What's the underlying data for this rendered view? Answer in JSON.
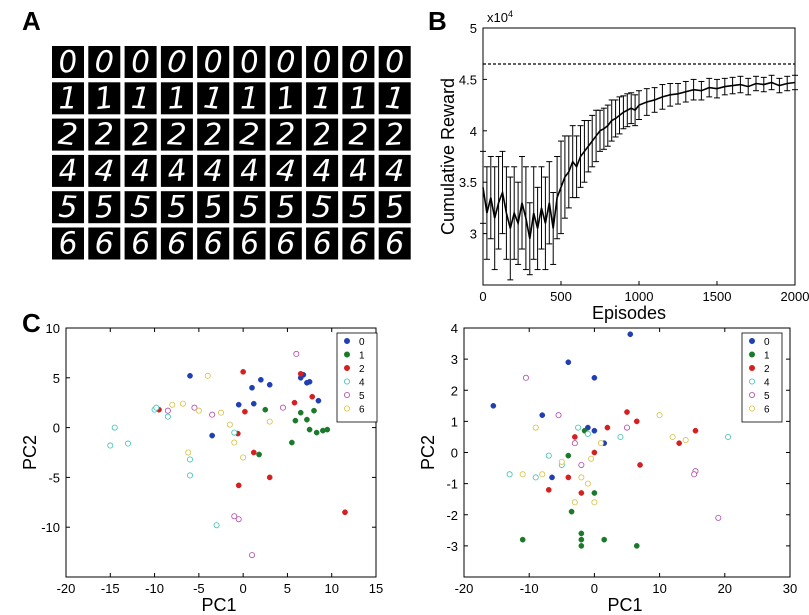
{
  "panels": {
    "a": "A",
    "b": "B",
    "c": "C"
  },
  "digits_grid": {
    "rows": [
      [
        "0",
        "0",
        "0",
        "0",
        "0",
        "0",
        "0",
        "0",
        "0",
        "0"
      ],
      [
        "1",
        "1",
        "1",
        "1",
        "1",
        "1",
        "1",
        "1",
        "1",
        "1"
      ],
      [
        "2",
        "2",
        "2",
        "2",
        "2",
        "2",
        "2",
        "2",
        "2",
        "2"
      ],
      [
        "4",
        "4",
        "4",
        "4",
        "4",
        "4",
        "4",
        "4",
        "4",
        "4"
      ],
      [
        "5",
        "5",
        "5",
        "5",
        "5",
        "5",
        "5",
        "5",
        "5",
        "5"
      ],
      [
        "6",
        "6",
        "6",
        "6",
        "6",
        "6",
        "6",
        "6",
        "6",
        "6"
      ]
    ]
  },
  "chart_data": [
    {
      "type": "line",
      "panel": "B",
      "xlabel": "Episodes",
      "ylabel": "Cumulative Reward",
      "y_exponent_label": "x10",
      "y_exponent_power": "4",
      "xlim": [
        0,
        2000
      ],
      "ylim": [
        2.5,
        5.0
      ],
      "xticks": [
        "0",
        "500",
        "1000",
        "1500",
        "2000"
      ],
      "yticks": [
        "3",
        "3.5",
        "4",
        "4.5",
        "5"
      ],
      "reference_line": {
        "y": 4.65,
        "style": "dashed"
      },
      "series": [
        {
          "x": [
            0,
            25,
            50,
            75,
            100,
            125,
            150,
            175,
            200,
            225,
            250,
            275,
            300,
            325,
            350,
            375,
            400,
            425,
            450,
            475,
            500,
            525,
            550,
            575,
            600,
            625,
            650,
            675,
            700,
            725,
            750,
            775,
            800,
            825,
            850,
            875,
            900,
            925,
            950,
            975,
            1000,
            1050,
            1100,
            1150,
            1200,
            1250,
            1300,
            1350,
            1400,
            1450,
            1500,
            1550,
            1600,
            1650,
            1700,
            1750,
            1800,
            1850,
            1900,
            1950,
            2000
          ],
          "y": [
            3.45,
            3.2,
            3.35,
            3.15,
            3.3,
            3.4,
            3.2,
            3.05,
            3.2,
            3.1,
            3.3,
            3.15,
            2.95,
            3.2,
            3.05,
            3.25,
            3.1,
            3.3,
            3.05,
            3.35,
            3.45,
            3.55,
            3.6,
            3.7,
            3.65,
            3.75,
            3.8,
            3.85,
            3.9,
            3.95,
            4.0,
            4.02,
            4.05,
            4.1,
            4.12,
            4.15,
            4.18,
            4.2,
            4.22,
            4.2,
            4.25,
            4.28,
            4.3,
            4.33,
            4.35,
            4.36,
            4.38,
            4.4,
            4.39,
            4.42,
            4.41,
            4.43,
            4.44,
            4.45,
            4.43,
            4.46,
            4.45,
            4.47,
            4.44,
            4.46,
            4.47
          ],
          "err": [
            0.35,
            0.45,
            0.4,
            0.5,
            0.45,
            0.4,
            0.45,
            0.5,
            0.45,
            0.4,
            0.45,
            0.5,
            0.35,
            0.45,
            0.4,
            0.4,
            0.45,
            0.4,
            0.35,
            0.4,
            0.45,
            0.4,
            0.35,
            0.35,
            0.3,
            0.3,
            0.3,
            0.25,
            0.25,
            0.25,
            0.2,
            0.2,
            0.2,
            0.2,
            0.18,
            0.18,
            0.16,
            0.16,
            0.15,
            0.15,
            0.14,
            0.13,
            0.12,
            0.12,
            0.11,
            0.1,
            0.1,
            0.1,
            0.09,
            0.09,
            0.09,
            0.08,
            0.08,
            0.08,
            0.08,
            0.07,
            0.07,
            0.07,
            0.07,
            0.07,
            0.07
          ]
        }
      ]
    },
    {
      "type": "scatter",
      "panel": "C-left",
      "xlabel": "PC1",
      "ylabel": "PC2",
      "xlim": [
        -20,
        15
      ],
      "ylim": [
        -15,
        10
      ],
      "xticks": [
        "-20",
        "-15",
        "-10",
        "-5",
        "0",
        "5",
        "10",
        "15"
      ],
      "yticks": [
        "-10",
        "-5",
        "0",
        "5",
        "10"
      ],
      "legend_position": "top-right",
      "series": [
        {
          "name": "0",
          "color": "#1f3fb3",
          "filled": true,
          "points": [
            [
              -6,
              5.2
            ],
            [
              1,
              4
            ],
            [
              2,
              4.8
            ],
            [
              3,
              4.3
            ],
            [
              6.5,
              5
            ],
            [
              7.5,
              4.6
            ],
            [
              8.5,
              2.7
            ],
            [
              -3.5,
              -0.8
            ],
            [
              -0.5,
              2.3
            ],
            [
              1.2,
              2.4
            ],
            [
              6.8,
              5.3
            ],
            [
              7.2,
              4.5
            ]
          ]
        },
        {
          "name": "1",
          "color": "#1a7a2a",
          "filled": true,
          "points": [
            [
              2.5,
              1.8
            ],
            [
              5.5,
              -1.5
            ],
            [
              6.5,
              1.5
            ],
            [
              7.5,
              -0.2
            ],
            [
              8,
              1.7
            ],
            [
              8.3,
              -0.5
            ],
            [
              9,
              -0.3
            ],
            [
              9.5,
              -0.2
            ],
            [
              5.9,
              0.7
            ],
            [
              1.8,
              -2.7
            ],
            [
              7.2,
              0.8
            ]
          ]
        },
        {
          "name": "2",
          "color": "#d42020",
          "filled": true,
          "points": [
            [
              -9.5,
              1.8
            ],
            [
              0,
              5.6
            ],
            [
              1.2,
              -2.5
            ],
            [
              3,
              -5
            ],
            [
              5.8,
              2.5
            ],
            [
              6.5,
              5.4
            ],
            [
              7.8,
              3.1
            ],
            [
              11.5,
              -8.5
            ],
            [
              -0.5,
              -5.8
            ],
            [
              -0.6,
              -0.6
            ],
            [
              0.2,
              1.6
            ]
          ]
        },
        {
          "name": "4",
          "color": "#40c0b0",
          "filled": false,
          "points": [
            [
              -15,
              -1.8
            ],
            [
              -14.5,
              0
            ],
            [
              -13,
              -1.6
            ],
            [
              -10,
              1.8
            ],
            [
              -9.8,
              2
            ],
            [
              -8.5,
              1.1
            ],
            [
              -6,
              -4.8
            ],
            [
              -3,
              -9.8
            ],
            [
              -6,
              -3.2
            ],
            [
              -1,
              -0.5
            ]
          ]
        },
        {
          "name": "5",
          "color": "#b04aa8",
          "filled": false,
          "points": [
            [
              -8.5,
              1.7
            ],
            [
              -5.5,
              2
            ],
            [
              -3.5,
              1.3
            ],
            [
              -1,
              -8.9
            ],
            [
              1,
              -12.8
            ],
            [
              6,
              7.4
            ],
            [
              -0.5,
              -9.2
            ],
            [
              4.5,
              2
            ]
          ]
        },
        {
          "name": "6",
          "color": "#d8c040",
          "filled": false,
          "points": [
            [
              -8,
              2.3
            ],
            [
              -6.8,
              2.4
            ],
            [
              -5,
              1.7
            ],
            [
              -4,
              5.2
            ],
            [
              -2.5,
              1.5
            ],
            [
              -1,
              -1.5
            ],
            [
              0,
              -3
            ],
            [
              -1.5,
              0.3
            ],
            [
              3,
              0.6
            ],
            [
              -6.2,
              -2.5
            ]
          ]
        }
      ]
    },
    {
      "type": "scatter",
      "panel": "C-right",
      "xlabel": "PC1",
      "ylabel": "PC2",
      "xlim": [
        -20,
        30
      ],
      "ylim": [
        -4,
        4
      ],
      "xticks": [
        "-20",
        "-10",
        "0",
        "10",
        "20",
        "30"
      ],
      "yticks": [
        "-3",
        "-2",
        "-1",
        "0",
        "1",
        "2",
        "3",
        "4"
      ],
      "legend_position": "top-right",
      "series": [
        {
          "name": "0",
          "color": "#1f3fb3",
          "filled": true,
          "points": [
            [
              -15.5,
              1.5
            ],
            [
              -8,
              1.2
            ],
            [
              -4,
              2.9
            ],
            [
              0,
              2.4
            ],
            [
              5.5,
              3.8
            ],
            [
              -6.5,
              -0.8
            ],
            [
              0,
              0.7
            ],
            [
              1.5,
              0.3
            ],
            [
              -1,
              0.8
            ]
          ]
        },
        {
          "name": "1",
          "color": "#1a7a2a",
          "filled": true,
          "points": [
            [
              -11,
              -2.8
            ],
            [
              -3.5,
              -1.9
            ],
            [
              -2,
              -2.6
            ],
            [
              -2,
              -3
            ],
            [
              -2,
              -2.8
            ],
            [
              1.5,
              -2.8
            ],
            [
              6.5,
              -3
            ],
            [
              0,
              -1.3
            ],
            [
              -1.5,
              0.7
            ],
            [
              -4,
              -0.1
            ]
          ]
        },
        {
          "name": "2",
          "color": "#d42020",
          "filled": true,
          "points": [
            [
              -7,
              -1.2
            ],
            [
              -4,
              -0.8
            ],
            [
              -3,
              0.5
            ],
            [
              -2,
              -1.3
            ],
            [
              0,
              0
            ],
            [
              2,
              0.8
            ],
            [
              6.5,
              1
            ],
            [
              7,
              -0.4
            ],
            [
              15.5,
              0.7
            ],
            [
              13,
              0.3
            ],
            [
              5,
              1.3
            ]
          ]
        },
        {
          "name": "4",
          "color": "#40c0b0",
          "filled": false,
          "points": [
            [
              -13,
              -0.7
            ],
            [
              -9,
              -0.8
            ],
            [
              -2.5,
              0.8
            ],
            [
              -1,
              0.6
            ],
            [
              4,
              0.5
            ],
            [
              20.5,
              0.5
            ],
            [
              -7,
              -0.1
            ],
            [
              -5,
              -0.4
            ]
          ]
        },
        {
          "name": "5",
          "color": "#b04aa8",
          "filled": false,
          "points": [
            [
              -10.5,
              2.4
            ],
            [
              -5.5,
              1.2
            ],
            [
              -3,
              0.3
            ],
            [
              -2,
              -0.4
            ],
            [
              5,
              0.8
            ],
            [
              15.5,
              -0.6
            ],
            [
              19,
              -2.1
            ],
            [
              15.3,
              -0.7
            ]
          ]
        },
        {
          "name": "6",
          "color": "#d8c040",
          "filled": false,
          "points": [
            [
              -11,
              -0.7
            ],
            [
              -8,
              -0.7
            ],
            [
              -5,
              -0.3
            ],
            [
              -2,
              -0.8
            ],
            [
              -0.5,
              -0.2
            ],
            [
              -3,
              -1.6
            ],
            [
              -1,
              -1
            ],
            [
              1,
              0.3
            ],
            [
              10,
              1.2
            ],
            [
              12,
              0.5
            ],
            [
              14,
              0.4
            ],
            [
              -9,
              0.8
            ],
            [
              0,
              -1.6
            ]
          ]
        }
      ]
    }
  ]
}
